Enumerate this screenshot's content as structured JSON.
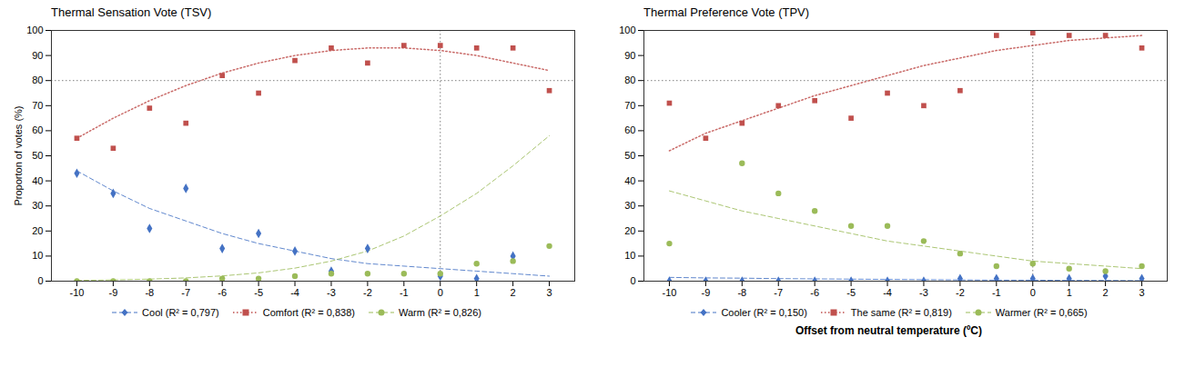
{
  "chart_data": [
    {
      "type": "scatter",
      "title": "Thermal Sensation Vote (TSV)",
      "ylabel": "Proporton of votes (%)",
      "x": [
        -10,
        -9,
        -8,
        -7,
        -6,
        -5,
        -4,
        -3,
        -2,
        -1,
        0,
        1,
        2,
        3
      ],
      "series": [
        {
          "name": "Cool (R² = 0,797)",
          "color": "#4472C4",
          "marker": "diamond",
          "line_style": "dashed",
          "values": [
            43,
            35,
            21,
            37,
            13,
            19,
            12,
            4,
            13,
            null,
            2,
            1,
            10,
            null
          ],
          "fit": [
            44,
            36,
            29,
            24,
            19,
            15,
            12,
            9,
            7,
            6,
            5,
            4,
            3,
            2
          ]
        },
        {
          "name": "Comfort (R² = 0,838)",
          "color": "#C0504D",
          "marker": "square",
          "line_style": "dotted",
          "values": [
            57,
            53,
            69,
            63,
            82,
            75,
            88,
            93,
            87,
            94,
            94,
            93,
            93,
            76
          ],
          "fit": [
            57,
            65,
            72,
            78,
            83,
            87,
            90,
            92,
            93,
            93,
            92,
            90,
            87,
            84
          ]
        },
        {
          "name": "Warm (R² = 0,826)",
          "color": "#9BBB59",
          "marker": "circle",
          "line_style": "dashed",
          "values": [
            0,
            0,
            0,
            0,
            1,
            1,
            2,
            3,
            3,
            3,
            3,
            7,
            8,
            14
          ],
          "fit": [
            0.3,
            0.5,
            0.8,
            1.3,
            2.1,
            3.3,
            5.2,
            8.0,
            12,
            18,
            26,
            35,
            46,
            58
          ]
        }
      ],
      "hline": 80,
      "vline": 0,
      "xlim": [
        -10.7,
        3.7
      ],
      "xticks": [
        -10,
        -9,
        -8,
        -7,
        -6,
        -5,
        -4,
        -3,
        -2,
        -1,
        0,
        1,
        2,
        3
      ],
      "ylim": [
        0,
        100
      ],
      "yticks": [
        0,
        10,
        20,
        30,
        40,
        50,
        60,
        70,
        80,
        90,
        100
      ],
      "grid": false
    },
    {
      "type": "scatter",
      "title": "Thermal Preference Vote (TPV)",
      "xlabel": "Offset from neutral temperature (ºC)",
      "x": [
        -10,
        -9,
        -8,
        -7,
        -6,
        -5,
        -4,
        -3,
        -2,
        -1,
        0,
        1,
        2,
        3
      ],
      "series": [
        {
          "name": "Cooler (R² = 0,150)",
          "color": "#4472C4",
          "marker": "diamond",
          "line_style": "dashed",
          "values": [
            0,
            0,
            0,
            0,
            0,
            0,
            0,
            0,
            1,
            1,
            1,
            1,
            2,
            1
          ],
          "fit": [
            1.5,
            1.3,
            1.2,
            1.0,
            0.9,
            0.8,
            0.7,
            0.6,
            0.5,
            0.4,
            0.4,
            0.3,
            0.3,
            0.2
          ]
        },
        {
          "name": "The same (R² = 0,819)",
          "color": "#C0504D",
          "marker": "square",
          "line_style": "dotted",
          "values": [
            71,
            57,
            63,
            70,
            72,
            65,
            75,
            70,
            76,
            98,
            99,
            98,
            98,
            93
          ],
          "fit": [
            52,
            59,
            64,
            69,
            74,
            78,
            82,
            86,
            89,
            92,
            94,
            96,
            97,
            98
          ]
        },
        {
          "name": "Warmer (R² = 0,665)",
          "color": "#9BBB59",
          "marker": "circle",
          "line_style": "dashed",
          "values": [
            15,
            null,
            47,
            35,
            28,
            22,
            22,
            16,
            11,
            6,
            7,
            5,
            4,
            6
          ],
          "fit": [
            36,
            32,
            28,
            25,
            22,
            19,
            16,
            14,
            12,
            10,
            8,
            7,
            6,
            5
          ]
        }
      ],
      "hline": 80,
      "vline": 0,
      "xlim": [
        -10.7,
        3.7
      ],
      "xticks": [
        -10,
        -9,
        -8,
        -7,
        -6,
        -5,
        -4,
        -3,
        -2,
        -1,
        0,
        1,
        2,
        3
      ],
      "ylim": [
        0,
        100
      ],
      "yticks": [
        0,
        10,
        20,
        30,
        40,
        50,
        60,
        70,
        80,
        90,
        100
      ],
      "grid": false
    }
  ]
}
